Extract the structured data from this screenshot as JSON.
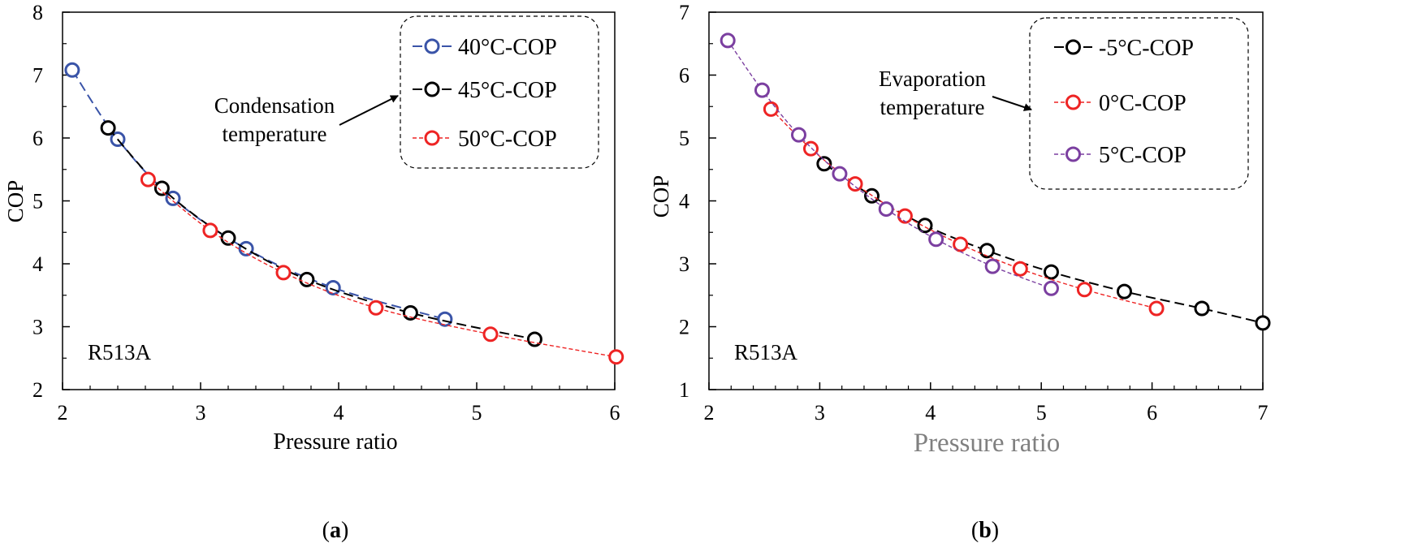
{
  "chart_data": [
    {
      "type": "line",
      "panel_label": "(a)",
      "panel_letter": "a",
      "xlabel": "Pressure ratio",
      "ylabel": "COP",
      "xlim": [
        2,
        6
      ],
      "ylim": [
        2,
        8
      ],
      "xticks": [
        2,
        3,
        4,
        5,
        6
      ],
      "yticks": [
        2,
        3,
        4,
        5,
        6,
        7,
        8
      ],
      "grid": false,
      "legend_position": "top-right",
      "annotation": {
        "lines": [
          "Condensation",
          "temperature"
        ]
      },
      "refrigerant_label": "R513A",
      "series": [
        {
          "name": "40°C-COP",
          "color": "#3a54a8",
          "dash": "long",
          "x": [
            2.07,
            2.4,
            2.8,
            3.33,
            3.96,
            4.77
          ],
          "y": [
            7.08,
            5.98,
            5.04,
            4.24,
            3.62,
            3.12
          ]
        },
        {
          "name": "45°C-COP",
          "color": "#000000",
          "dash": "long",
          "x": [
            2.33,
            2.72,
            3.2,
            3.77,
            4.52,
            5.42
          ],
          "y": [
            6.16,
            5.2,
            4.41,
            3.75,
            3.22,
            2.8
          ]
        },
        {
          "name": "50°C-COP",
          "color": "#ee2424",
          "dash": "short",
          "x": [
            2.62,
            3.07,
            3.6,
            4.27,
            5.1,
            6.01
          ],
          "y": [
            5.34,
            4.53,
            3.86,
            3.3,
            2.88,
            2.52
          ]
        }
      ]
    },
    {
      "type": "line",
      "panel_label": "(b)",
      "panel_letter": "b",
      "xlabel": "Pressure ratio",
      "ylabel": "COP",
      "xlim": [
        2,
        7
      ],
      "ylim": [
        1,
        7
      ],
      "xticks": [
        2,
        3,
        4,
        5,
        6,
        7
      ],
      "yticks": [
        1,
        2,
        3,
        4,
        5,
        6,
        7
      ],
      "grid": false,
      "legend_position": "top-right",
      "annotation": {
        "lines": [
          "Evaporation",
          "temperature"
        ]
      },
      "refrigerant_label": "R513A",
      "series": [
        {
          "name": "-5°C-COP",
          "color": "#000000",
          "dash": "long",
          "x": [
            3.04,
            3.47,
            3.95,
            4.51,
            5.09,
            5.75,
            6.45,
            7.0
          ],
          "y": [
            4.59,
            4.08,
            3.61,
            3.21,
            2.87,
            2.56,
            2.29,
            2.06
          ]
        },
        {
          "name": "0°C-COP",
          "color": "#ee2424",
          "dash": "short",
          "x": [
            2.56,
            2.92,
            3.32,
            3.77,
            4.27,
            4.81,
            5.39,
            6.04
          ],
          "y": [
            5.46,
            4.83,
            4.27,
            3.76,
            3.31,
            2.92,
            2.59,
            2.29
          ]
        },
        {
          "name": "5°C-COP",
          "color": "#7b3fa0",
          "dash": "short",
          "x": [
            2.17,
            2.48,
            2.81,
            3.18,
            3.6,
            4.05,
            4.56,
            5.09
          ],
          "y": [
            6.55,
            5.76,
            5.05,
            4.43,
            3.87,
            3.39,
            2.96,
            2.61
          ]
        }
      ]
    }
  ]
}
